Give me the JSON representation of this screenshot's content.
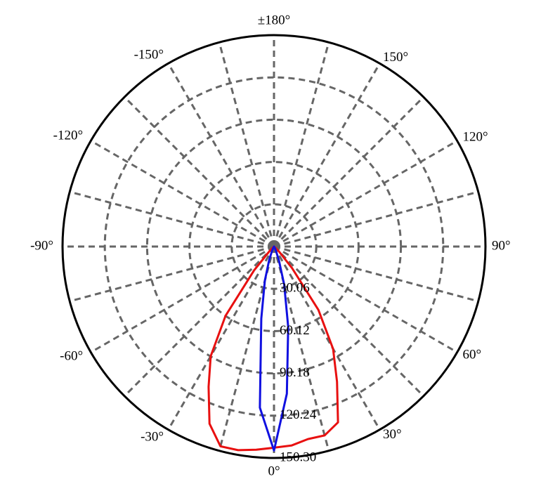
{
  "chart_data": {
    "type": "polar",
    "xticks": [
      {
        "value": 0,
        "label": "0°"
      },
      {
        "value": 30,
        "label": "30°"
      },
      {
        "value": 60,
        "label": "60°"
      },
      {
        "value": 90,
        "label": "90°"
      },
      {
        "value": 120,
        "label": "120°"
      },
      {
        "value": 150,
        "label": "150°"
      },
      {
        "value": 180,
        "label": "±180°"
      },
      {
        "value": -150,
        "label": "-150°"
      },
      {
        "value": -120,
        "label": "-120°"
      },
      {
        "value": -90,
        "label": "-90°"
      },
      {
        "value": -60,
        "label": "-60°"
      },
      {
        "value": -30,
        "label": "-30°"
      }
    ],
    "ylim": [
      0,
      150.3
    ],
    "yticks": [
      30.06,
      60.12,
      90.18,
      120.24,
      {
        "value": 150.3,
        "label": "150.30"
      }
    ],
    "grid": true,
    "x": [
      -60,
      -55,
      -50,
      -45,
      -40,
      -35,
      -30,
      -25,
      -20,
      -15,
      -10,
      -5,
      0,
      5,
      10,
      15,
      20,
      25,
      30,
      35,
      40,
      45,
      50,
      55,
      60
    ],
    "series": [
      {
        "color": "#e81010",
        "values": [
          0,
          0,
          1,
          4,
          22,
          60,
          90,
          110,
          134,
          147,
          147,
          145,
          143,
          142,
          139,
          139,
          133,
          106,
          84,
          55,
          20,
          5,
          1,
          0,
          0
        ]
      },
      {
        "color": "#1010e0",
        "values": [
          0,
          0,
          0,
          0,
          0,
          0,
          1,
          3,
          10,
          25,
          52,
          115,
          145,
          105,
          58,
          28,
          10,
          3,
          1,
          0,
          0,
          0,
          0,
          0,
          0
        ]
      }
    ]
  }
}
